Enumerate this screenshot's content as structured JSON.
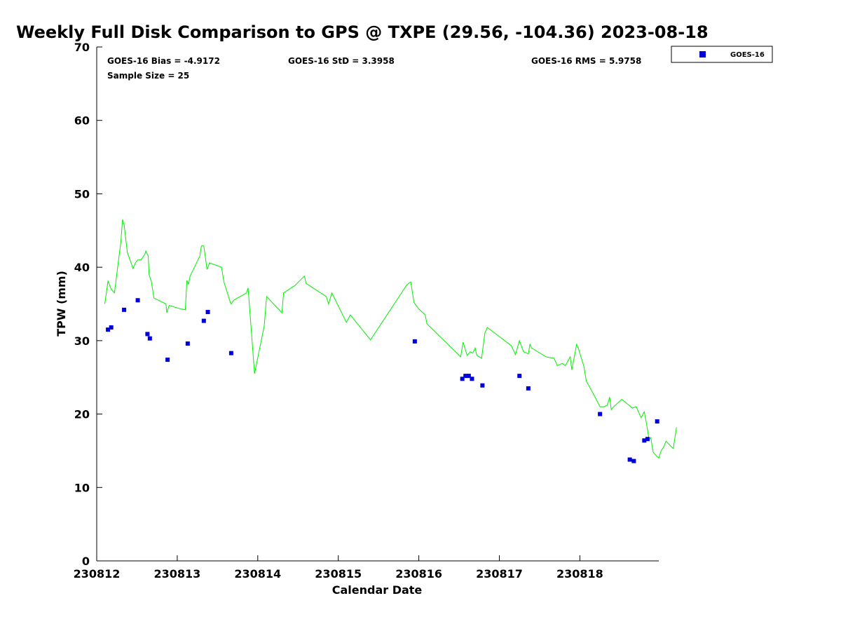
{
  "chart_data": {
    "type": "scatter",
    "title": "Weekly Full Disk Comparison to GPS @ TXPE (29.56, -104.36) 2023-08-18",
    "xlabel": "Calendar Date",
    "ylabel": "TPW (mm)",
    "xlim": [
      0,
      6.98
    ],
    "ylim": [
      0,
      70
    ],
    "x_ticks": [
      {
        "value": 0,
        "label": "230812"
      },
      {
        "value": 1,
        "label": "230813"
      },
      {
        "value": 2,
        "label": "230814"
      },
      {
        "value": 3,
        "label": "230815"
      },
      {
        "value": 4,
        "label": "230816"
      },
      {
        "value": 5,
        "label": "230817"
      },
      {
        "value": 6,
        "label": "230818"
      }
    ],
    "y_ticks": [
      0,
      10,
      20,
      30,
      40,
      50,
      60,
      70
    ],
    "grid": false,
    "legend": {
      "position": "top-right-outside",
      "entries": [
        "GOES-16"
      ]
    },
    "stats": {
      "bias": "GOES-16 Bias = -4.9172",
      "std": "GOES-16 StD = 3.3958",
      "rms": "GOES-16 RMS = 5.9758",
      "sample": "Sample Size = 25"
    },
    "series": [
      {
        "name": "GOES-16",
        "role": "scatter",
        "color": "#0000dd",
        "points": [
          [
            0.14,
            31.5
          ],
          [
            0.18,
            31.8
          ],
          [
            0.34,
            34.2
          ],
          [
            0.51,
            35.5
          ],
          [
            0.63,
            30.9
          ],
          [
            0.66,
            30.3
          ],
          [
            0.88,
            27.4
          ],
          [
            1.13,
            29.6
          ],
          [
            1.33,
            32.7
          ],
          [
            1.38,
            33.9
          ],
          [
            1.67,
            28.3
          ],
          [
            3.95,
            29.9
          ],
          [
            4.54,
            24.8
          ],
          [
            4.58,
            25.2
          ],
          [
            4.62,
            25.2
          ],
          [
            4.66,
            24.8
          ],
          [
            4.79,
            23.9
          ],
          [
            5.25,
            25.2
          ],
          [
            5.36,
            23.5
          ],
          [
            6.25,
            20.0
          ],
          [
            6.62,
            13.8
          ],
          [
            6.67,
            13.6
          ],
          [
            6.8,
            16.4
          ],
          [
            6.84,
            16.6
          ],
          [
            6.96,
            19.0
          ]
        ]
      },
      {
        "role": "line",
        "color": "#00ee00",
        "points": [
          [
            0.1,
            35.0
          ],
          [
            0.14,
            38.1
          ],
          [
            0.18,
            37.0
          ],
          [
            0.22,
            36.5
          ],
          [
            0.26,
            40.0
          ],
          [
            0.3,
            43.5
          ],
          [
            0.32,
            46.5
          ],
          [
            0.34,
            45.8
          ],
          [
            0.38,
            42.0
          ],
          [
            0.43,
            40.5
          ],
          [
            0.45,
            39.8
          ],
          [
            0.48,
            40.6
          ],
          [
            0.51,
            41.0
          ],
          [
            0.55,
            41.0
          ],
          [
            0.6,
            41.8
          ],
          [
            0.61,
            42.2
          ],
          [
            0.64,
            41.5
          ],
          [
            0.65,
            39.0
          ],
          [
            0.68,
            38.0
          ],
          [
            0.71,
            35.8
          ],
          [
            0.86,
            35.0
          ],
          [
            0.87,
            33.8
          ],
          [
            0.9,
            34.8
          ],
          [
            1.05,
            34.3
          ],
          [
            1.1,
            34.2
          ],
          [
            1.12,
            38.2
          ],
          [
            1.14,
            37.7
          ],
          [
            1.16,
            38.8
          ],
          [
            1.28,
            41.5
          ],
          [
            1.3,
            42.9
          ],
          [
            1.33,
            42.9
          ],
          [
            1.37,
            39.7
          ],
          [
            1.4,
            40.6
          ],
          [
            1.55,
            40.0
          ],
          [
            1.58,
            38.0
          ],
          [
            1.66,
            35.2
          ],
          [
            1.67,
            35.0
          ],
          [
            1.7,
            35.5
          ],
          [
            1.86,
            36.5
          ],
          [
            1.88,
            37.2
          ],
          [
            1.96,
            25.5
          ],
          [
            2.08,
            32.0
          ],
          [
            2.11,
            36.0
          ],
          [
            2.3,
            33.8
          ],
          [
            2.32,
            36.5
          ],
          [
            2.46,
            37.5
          ],
          [
            2.58,
            38.8
          ],
          [
            2.6,
            37.8
          ],
          [
            2.85,
            36.0
          ],
          [
            2.88,
            35.0
          ],
          [
            2.92,
            36.5
          ],
          [
            3.1,
            32.5
          ],
          [
            3.15,
            33.5
          ],
          [
            3.4,
            30.1
          ],
          [
            3.85,
            37.6
          ],
          [
            3.9,
            38.0
          ],
          [
            3.94,
            35.2
          ],
          [
            4.0,
            34.3
          ],
          [
            4.08,
            33.5
          ],
          [
            4.1,
            32.3
          ],
          [
            4.52,
            27.8
          ],
          [
            4.55,
            29.8
          ],
          [
            4.6,
            28.0
          ],
          [
            4.64,
            28.5
          ],
          [
            4.67,
            28.3
          ],
          [
            4.7,
            29.0
          ],
          [
            4.72,
            28.0
          ],
          [
            4.78,
            27.6
          ],
          [
            4.82,
            31.0
          ],
          [
            4.85,
            31.8
          ],
          [
            5.15,
            29.3
          ],
          [
            5.2,
            28.1
          ],
          [
            5.25,
            30.0
          ],
          [
            5.3,
            28.5
          ],
          [
            5.36,
            28.2
          ],
          [
            5.38,
            29.5
          ],
          [
            5.4,
            29.0
          ],
          [
            5.58,
            27.8
          ],
          [
            5.68,
            27.6
          ],
          [
            5.72,
            26.6
          ],
          [
            5.78,
            26.9
          ],
          [
            5.82,
            26.6
          ],
          [
            5.88,
            27.8
          ],
          [
            5.9,
            26.0
          ],
          [
            5.96,
            29.5
          ],
          [
            5.98,
            29.0
          ],
          [
            6.05,
            26.5
          ],
          [
            6.08,
            24.5
          ],
          [
            6.18,
            22.5
          ],
          [
            6.25,
            21.0
          ],
          [
            6.3,
            21.0
          ],
          [
            6.34,
            21.2
          ],
          [
            6.37,
            22.3
          ],
          [
            6.39,
            20.6
          ],
          [
            6.42,
            21.0
          ],
          [
            6.52,
            22.0
          ],
          [
            6.6,
            21.3
          ],
          [
            6.65,
            20.8
          ],
          [
            6.7,
            21.0
          ],
          [
            6.76,
            19.5
          ],
          [
            6.8,
            20.3
          ],
          [
            6.83,
            18.5
          ],
          [
            6.86,
            16.5
          ],
          [
            6.88,
            16.8
          ],
          [
            6.91,
            14.8
          ],
          [
            6.95,
            14.3
          ],
          [
            6.98,
            14.0
          ],
          [
            7.01,
            15.0
          ],
          [
            7.04,
            15.5
          ],
          [
            7.07,
            16.3
          ],
          [
            7.14,
            15.5
          ],
          [
            7.16,
            15.3
          ],
          [
            7.2,
            18.2
          ]
        ]
      }
    ]
  }
}
